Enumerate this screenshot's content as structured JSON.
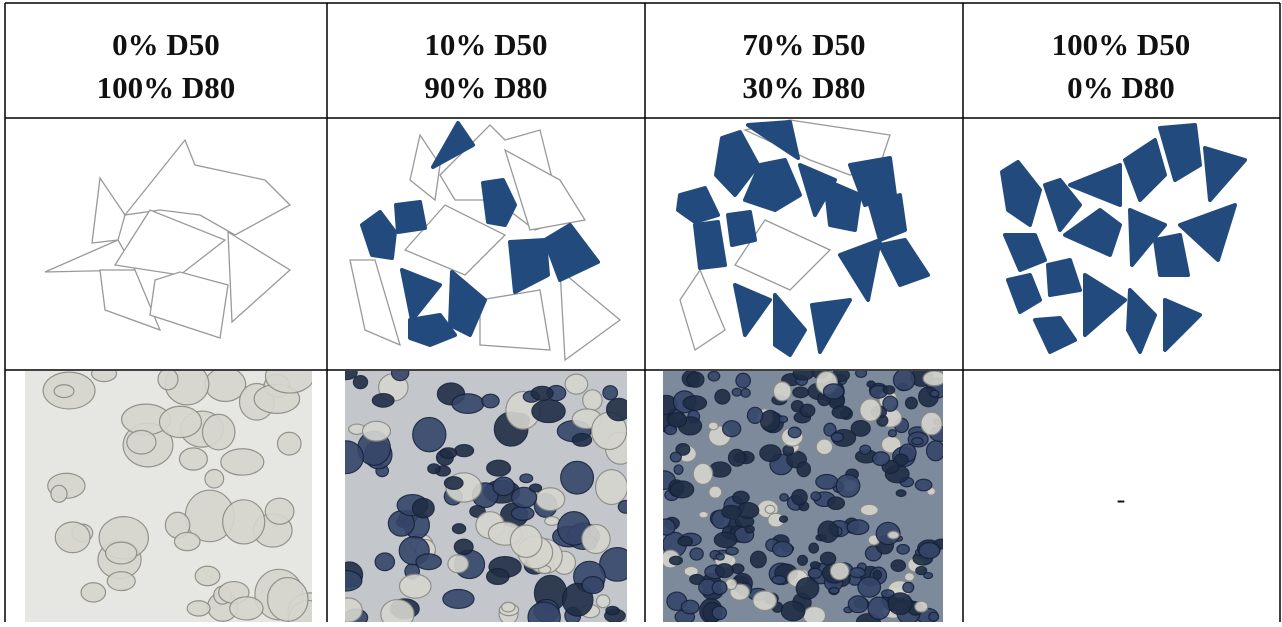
{
  "table": {
    "headers": [
      [
        "0% D50",
        "100% D80"
      ],
      [
        "10% D50",
        "90% D80"
      ],
      [
        "70% D50",
        "30% D80"
      ],
      [
        "100% D50",
        "0% D80"
      ]
    ],
    "rows": [
      [
        null,
        null,
        null,
        "-"
      ]
    ]
  }
}
